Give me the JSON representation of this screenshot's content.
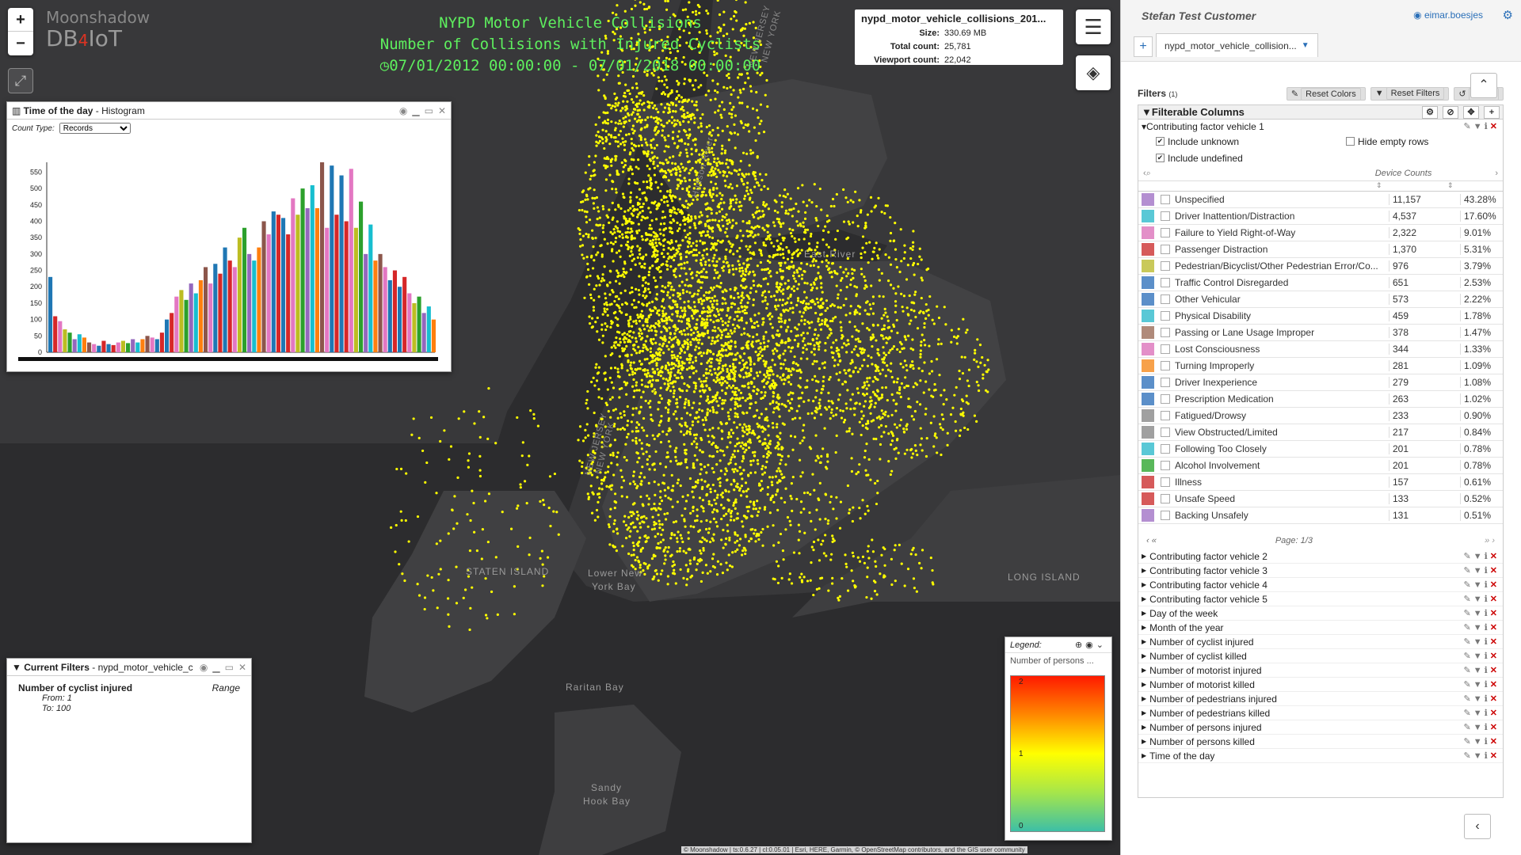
{
  "map": {
    "zoom_in": "+",
    "zoom_out": "−",
    "expand_icon": "⤢",
    "logo_line1": "Moonshadow",
    "logo_line2": "DB",
    "logo_four": "4",
    "logo_iot": "IoT",
    "title_lines": [
      "NYPD Motor Vehicle Collisions",
      "Number of Collisions with Injured Cyclists",
      "07/01/2012 00:00:00 - 07/01/2018 00:00:00"
    ],
    "labels": {
      "east_river": "East River",
      "staten_island": "STATEN ISLAND",
      "lower_ny_bay": "Lower New",
      "lower_ny_bay2": "York Bay",
      "raritan_bay": "Raritan Bay",
      "sandy_hook": "Sandy",
      "sandy_hook2": "Hook Bay",
      "long_island": "LONG ISLAND",
      "nj_ny": "NEW JERSEY",
      "nj_ny2": "NEW YORK",
      "hudson": "Hudson River",
      "nj_ny_north": "NEW JERSEY",
      "nj_ny_north2": "NEW YORK"
    },
    "attribution": "© Moonshadow | ts:0.6.27 | cl:0.05.01 | Esri, HERE, Garmin, © OpenStreetMap contributors, and the GIS user community"
  },
  "dataset_info": {
    "name": "nypd_motor_vehicle_collisions_201...",
    "size_label": "Size:",
    "size": "330.69 MB",
    "total_label": "Total count:",
    "total": "25,781",
    "viewport_label": "Viewport count:",
    "viewport": "22,042"
  },
  "histogram": {
    "title_bold": "Time of the day",
    "title_rest": " - Histogram",
    "count_type_label": "Count Type:",
    "count_type_value": "Records",
    "x_ticks_label": "122222222222"
  },
  "chart_data": {
    "type": "bar",
    "title": "Time of the day - Histogram",
    "ylim": [
      0,
      580
    ],
    "yticks": [
      0,
      50,
      100,
      150,
      200,
      250,
      300,
      350,
      400,
      450,
      500,
      550
    ],
    "values": [
      230,
      110,
      95,
      70,
      60,
      40,
      55,
      45,
      30,
      25,
      20,
      35,
      25,
      22,
      30,
      35,
      28,
      40,
      30,
      40,
      50,
      45,
      40,
      60,
      100,
      120,
      170,
      190,
      160,
      210,
      180,
      220,
      260,
      210,
      270,
      240,
      320,
      280,
      260,
      350,
      380,
      300,
      280,
      320,
      400,
      360,
      430,
      420,
      410,
      360,
      470,
      420,
      500,
      440,
      510,
      440,
      580,
      380,
      570,
      420,
      540,
      400,
      560,
      380,
      460,
      300,
      390,
      280,
      300,
      260,
      220,
      250,
      200,
      230,
      180,
      150,
      170,
      120,
      140,
      100
    ],
    "colors": [
      "#1f77b4",
      "#d62728",
      "#e377c2",
      "#bcbd22",
      "#2ca02c",
      "#9467bd",
      "#17becf",
      "#ff7f0e",
      "#8c564b",
      "#e377c2",
      "#1f77b4",
      "#d62728"
    ]
  },
  "current_filters": {
    "title_bold": "Current Filters",
    "title_rest": " - nypd_motor_vehicle_c",
    "field": "Number of cyclist injured",
    "type": "Range",
    "from": "From: 1",
    "to": "To: 100"
  },
  "legend": {
    "title": "Legend:",
    "label": "Number of persons ...",
    "high": "2",
    "mid": "1",
    "low": "0"
  },
  "side": {
    "user": "Stefan Test Customer",
    "login": "eimar.boesjes",
    "tab_label": "nypd_motor_vehicle_collision...",
    "filters_label": "Filters",
    "filters_count": "(1)",
    "reset_colors": "Reset Colors",
    "reset_filters": "Reset Filters",
    "clear": "Clear",
    "filterable_columns": "Filterable Columns",
    "cf1": "Contributing factor vehicle 1",
    "include_unknown": "Include unknown",
    "include_undefined": "Include undefined",
    "hide_empty": "Hide empty rows",
    "device_counts": "Device Counts",
    "page": "Page: 1/3",
    "rows": [
      {
        "name": "Unspecified",
        "count": "11,157",
        "pct": "43.28%",
        "color": "#b48fd1"
      },
      {
        "name": "Driver Inattention/Distraction",
        "count": "4,537",
        "pct": "17.60%",
        "color": "#59c8d6"
      },
      {
        "name": "Failure to Yield Right-of-Way",
        "count": "2,322",
        "pct": "9.01%",
        "color": "#e38fc8"
      },
      {
        "name": "Passenger Distraction",
        "count": "1,370",
        "pct": "5.31%",
        "color": "#d65a5a"
      },
      {
        "name": "Pedestrian/Bicyclist/Other Pedestrian Error/Co...",
        "count": "976",
        "pct": "3.79%",
        "color": "#c9c95a"
      },
      {
        "name": "Traffic Control Disregarded",
        "count": "651",
        "pct": "2.53%",
        "color": "#5b8fc9"
      },
      {
        "name": "Other Vehicular",
        "count": "573",
        "pct": "2.22%",
        "color": "#5b8fc9"
      },
      {
        "name": "Physical Disability",
        "count": "459",
        "pct": "1.78%",
        "color": "#59c8d6"
      },
      {
        "name": "Passing or Lane Usage Improper",
        "count": "378",
        "pct": "1.47%",
        "color": "#b08a7a"
      },
      {
        "name": "Lost Consciousness",
        "count": "344",
        "pct": "1.33%",
        "color": "#e38fc8"
      },
      {
        "name": "Turning Improperly",
        "count": "281",
        "pct": "1.09%",
        "color": "#f7a14a"
      },
      {
        "name": "Driver Inexperience",
        "count": "279",
        "pct": "1.08%",
        "color": "#5b8fc9"
      },
      {
        "name": "Prescription Medication",
        "count": "263",
        "pct": "1.02%",
        "color": "#5b8fc9"
      },
      {
        "name": "Fatigued/Drowsy",
        "count": "233",
        "pct": "0.90%",
        "color": "#a0a0a0"
      },
      {
        "name": "View Obstructed/Limited",
        "count": "217",
        "pct": "0.84%",
        "color": "#a0a0a0"
      },
      {
        "name": "Following Too Closely",
        "count": "201",
        "pct": "0.78%",
        "color": "#59c8d6"
      },
      {
        "name": "Alcohol Involvement",
        "count": "201",
        "pct": "0.78%",
        "color": "#59b85a"
      },
      {
        "name": "Illness",
        "count": "157",
        "pct": "0.61%",
        "color": "#d65a5a"
      },
      {
        "name": "Unsafe Speed",
        "count": "133",
        "pct": "0.52%",
        "color": "#d65a5a"
      },
      {
        "name": "Backing Unsafely",
        "count": "131",
        "pct": "0.51%",
        "color": "#b48fd1"
      }
    ],
    "columns": [
      "Contributing factor vehicle 2",
      "Contributing factor vehicle 3",
      "Contributing factor vehicle 4",
      "Contributing factor vehicle 5",
      "Day of the week",
      "Month of the year",
      "Number of cyclist injured",
      "Number of cyclist killed",
      "Number of motorist injured",
      "Number of motorist killed",
      "Number of pedestrians injured",
      "Number of pedestrians killed",
      "Number of persons injured",
      "Number of persons killed",
      "Time of the day"
    ]
  }
}
